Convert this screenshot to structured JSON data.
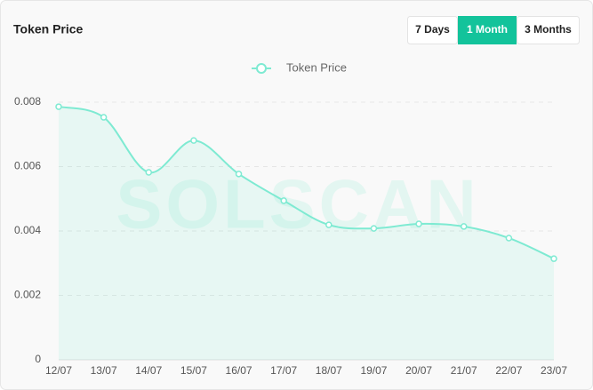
{
  "title": "Token Price",
  "buttons": [
    "7 Days",
    "1 Month",
    "3 Months"
  ],
  "active_button": 1,
  "chart_data": {
    "type": "line",
    "watermark": "SOLSCAN",
    "categories": [
      "12/07",
      "13/07",
      "14/07",
      "15/07",
      "16/07",
      "17/07",
      "18/07",
      "19/07",
      "20/07",
      "21/07",
      "22/07",
      "23/07"
    ],
    "series": [
      {
        "name": "Token Price",
        "color": "#7eead2",
        "values": [
          0.00786,
          0.00753,
          0.00582,
          0.00681,
          0.00577,
          0.00494,
          0.00419,
          0.00408,
          0.00422,
          0.00414,
          0.00378,
          0.00314
        ]
      }
    ],
    "ylim": [
      0,
      0.008
    ],
    "yticks": [
      0,
      0.002,
      0.004,
      0.006,
      0.008
    ],
    "grid": true,
    "smooth": true,
    "area": true
  }
}
